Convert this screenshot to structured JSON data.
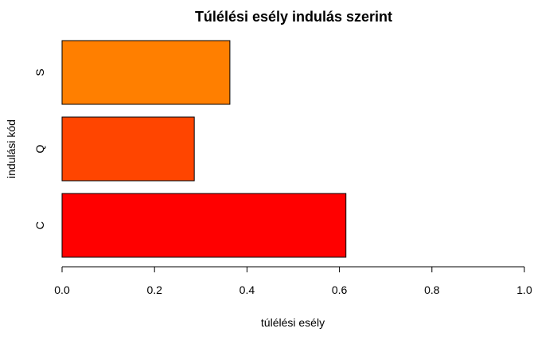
{
  "chart_data": {
    "type": "bar",
    "orientation": "horizontal",
    "title": "Túlélési esély indulás szerint",
    "xlabel": "túlélési esély",
    "ylabel": "indulási kód",
    "categories": [
      "C",
      "Q",
      "S"
    ],
    "values": [
      0.614,
      0.286,
      0.363
    ],
    "colors": [
      "#ff0000",
      "#ff4500",
      "#ff7f00"
    ],
    "xlim": [
      0,
      1
    ],
    "xticks": [
      "0.0",
      "0.2",
      "0.4",
      "0.6",
      "0.8",
      "1.0"
    ],
    "grid": false,
    "legend": "none"
  }
}
